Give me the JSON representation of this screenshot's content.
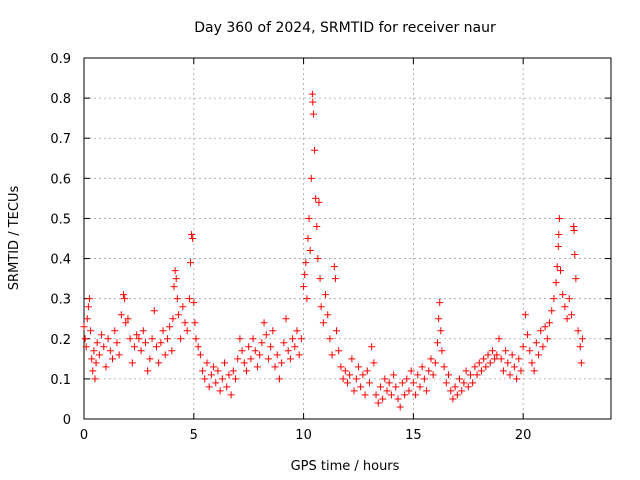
{
  "chart_data": {
    "type": "scatter",
    "title": "Day 360 of 2024, SRMTID for receiver naur",
    "xlabel": "GPS time / hours",
    "ylabel": "SRMTID / TECUs",
    "xlim": [
      0,
      24
    ],
    "ylim": [
      0,
      0.9
    ],
    "xticks": [
      0,
      5,
      10,
      15,
      20
    ],
    "yticks": [
      0,
      0.1,
      0.2,
      0.3,
      0.4,
      0.5,
      0.6,
      0.7,
      0.8,
      0.9
    ],
    "xtick_labels": [
      "0",
      "5",
      "10",
      "15",
      "20"
    ],
    "ytick_labels": [
      "0",
      "0.1",
      "0.2",
      "0.3",
      "0.4",
      "0.5",
      "0.6",
      "0.7",
      "0.8",
      "0.9"
    ],
    "grid": true,
    "marker": "+",
    "color": "#ff0000",
    "series": [
      {
        "name": "SRMTID",
        "points": [
          [
            0.0,
            0.23
          ],
          [
            0.05,
            0.2
          ],
          [
            0.1,
            0.18
          ],
          [
            0.15,
            0.25
          ],
          [
            0.2,
            0.28
          ],
          [
            0.25,
            0.3
          ],
          [
            0.3,
            0.22
          ],
          [
            0.35,
            0.15
          ],
          [
            0.4,
            0.12
          ],
          [
            0.45,
            0.17
          ],
          [
            0.5,
            0.1
          ],
          [
            0.55,
            0.14
          ],
          [
            0.6,
            0.19
          ],
          [
            0.7,
            0.16
          ],
          [
            0.8,
            0.21
          ],
          [
            0.9,
            0.18
          ],
          [
            1.0,
            0.13
          ],
          [
            1.1,
            0.2
          ],
          [
            1.2,
            0.17
          ],
          [
            1.3,
            0.15
          ],
          [
            1.4,
            0.22
          ],
          [
            1.5,
            0.19
          ],
          [
            1.6,
            0.16
          ],
          [
            1.7,
            0.26
          ],
          [
            1.8,
            0.31
          ],
          [
            1.85,
            0.3
          ],
          [
            1.9,
            0.24
          ],
          [
            2.0,
            0.25
          ],
          [
            2.1,
            0.2
          ],
          [
            2.2,
            0.14
          ],
          [
            2.3,
            0.18
          ],
          [
            2.4,
            0.21
          ],
          [
            2.5,
            0.2
          ],
          [
            2.6,
            0.17
          ],
          [
            2.7,
            0.22
          ],
          [
            2.8,
            0.19
          ],
          [
            2.9,
            0.12
          ],
          [
            3.0,
            0.15
          ],
          [
            3.1,
            0.2
          ],
          [
            3.2,
            0.27
          ],
          [
            3.3,
            0.18
          ],
          [
            3.4,
            0.14
          ],
          [
            3.5,
            0.19
          ],
          [
            3.6,
            0.22
          ],
          [
            3.7,
            0.16
          ],
          [
            3.8,
            0.2
          ],
          [
            3.9,
            0.23
          ],
          [
            4.0,
            0.17
          ],
          [
            4.05,
            0.25
          ],
          [
            4.1,
            0.33
          ],
          [
            4.15,
            0.37
          ],
          [
            4.2,
            0.35
          ],
          [
            4.25,
            0.3
          ],
          [
            4.3,
            0.26
          ],
          [
            4.4,
            0.2
          ],
          [
            4.5,
            0.28
          ],
          [
            4.6,
            0.24
          ],
          [
            4.7,
            0.22
          ],
          [
            4.8,
            0.3
          ],
          [
            4.85,
            0.39
          ],
          [
            4.9,
            0.46
          ],
          [
            4.95,
            0.45
          ],
          [
            5.0,
            0.29
          ],
          [
            5.05,
            0.24
          ],
          [
            5.1,
            0.2
          ],
          [
            5.2,
            0.18
          ],
          [
            5.3,
            0.16
          ],
          [
            5.4,
            0.12
          ],
          [
            5.5,
            0.1
          ],
          [
            5.6,
            0.14
          ],
          [
            5.7,
            0.08
          ],
          [
            5.8,
            0.11
          ],
          [
            5.9,
            0.13
          ],
          [
            6.0,
            0.09
          ],
          [
            6.1,
            0.12
          ],
          [
            6.2,
            0.07
          ],
          [
            6.3,
            0.1
          ],
          [
            6.4,
            0.14
          ],
          [
            6.5,
            0.08
          ],
          [
            6.6,
            0.11
          ],
          [
            6.7,
            0.06
          ],
          [
            6.8,
            0.12
          ],
          [
            6.9,
            0.1
          ],
          [
            7.0,
            0.15
          ],
          [
            7.1,
            0.2
          ],
          [
            7.2,
            0.17
          ],
          [
            7.3,
            0.14
          ],
          [
            7.4,
            0.12
          ],
          [
            7.5,
            0.18
          ],
          [
            7.6,
            0.15
          ],
          [
            7.7,
            0.2
          ],
          [
            7.8,
            0.17
          ],
          [
            7.9,
            0.13
          ],
          [
            8.0,
            0.16
          ],
          [
            8.1,
            0.19
          ],
          [
            8.2,
            0.24
          ],
          [
            8.3,
            0.21
          ],
          [
            8.4,
            0.15
          ],
          [
            8.5,
            0.18
          ],
          [
            8.6,
            0.22
          ],
          [
            8.7,
            0.13
          ],
          [
            8.8,
            0.16
          ],
          [
            8.9,
            0.1
          ],
          [
            9.0,
            0.14
          ],
          [
            9.1,
            0.19
          ],
          [
            9.2,
            0.25
          ],
          [
            9.3,
            0.17
          ],
          [
            9.4,
            0.15
          ],
          [
            9.5,
            0.2
          ],
          [
            9.6,
            0.18
          ],
          [
            9.7,
            0.22
          ],
          [
            9.8,
            0.16
          ],
          [
            9.9,
            0.2
          ],
          [
            10.0,
            0.33
          ],
          [
            10.05,
            0.36
          ],
          [
            10.1,
            0.39
          ],
          [
            10.15,
            0.3
          ],
          [
            10.2,
            0.45
          ],
          [
            10.25,
            0.5
          ],
          [
            10.3,
            0.42
          ],
          [
            10.35,
            0.6
          ],
          [
            10.4,
            0.81
          ],
          [
            10.42,
            0.79
          ],
          [
            10.45,
            0.76
          ],
          [
            10.5,
            0.67
          ],
          [
            10.55,
            0.55
          ],
          [
            10.6,
            0.48
          ],
          [
            10.65,
            0.4
          ],
          [
            10.7,
            0.54
          ],
          [
            10.75,
            0.35
          ],
          [
            10.8,
            0.28
          ],
          [
            10.9,
            0.24
          ],
          [
            11.0,
            0.31
          ],
          [
            11.1,
            0.26
          ],
          [
            11.2,
            0.2
          ],
          [
            11.3,
            0.16
          ],
          [
            11.4,
            0.38
          ],
          [
            11.45,
            0.35
          ],
          [
            11.5,
            0.22
          ],
          [
            11.6,
            0.17
          ],
          [
            11.7,
            0.13
          ],
          [
            11.8,
            0.1
          ],
          [
            11.9,
            0.12
          ],
          [
            12.0,
            0.09
          ],
          [
            12.1,
            0.11
          ],
          [
            12.2,
            0.15
          ],
          [
            12.3,
            0.07
          ],
          [
            12.4,
            0.1
          ],
          [
            12.5,
            0.13
          ],
          [
            12.6,
            0.08
          ],
          [
            12.7,
            0.11
          ],
          [
            12.8,
            0.06
          ],
          [
            12.9,
            0.12
          ],
          [
            13.0,
            0.09
          ],
          [
            13.1,
            0.18
          ],
          [
            13.2,
            0.14
          ],
          [
            13.3,
            0.06
          ],
          [
            13.4,
            0.04
          ],
          [
            13.5,
            0.08
          ],
          [
            13.6,
            0.05
          ],
          [
            13.7,
            0.1
          ],
          [
            13.8,
            0.07
          ],
          [
            13.9,
            0.09
          ],
          [
            14.0,
            0.06
          ],
          [
            14.1,
            0.11
          ],
          [
            14.2,
            0.08
          ],
          [
            14.3,
            0.05
          ],
          [
            14.4,
            0.03
          ],
          [
            14.5,
            0.09
          ],
          [
            14.6,
            0.06
          ],
          [
            14.7,
            0.1
          ],
          [
            14.8,
            0.07
          ],
          [
            14.9,
            0.12
          ],
          [
            15.0,
            0.09
          ],
          [
            15.1,
            0.06
          ],
          [
            15.2,
            0.11
          ],
          [
            15.3,
            0.08
          ],
          [
            15.4,
            0.13
          ],
          [
            15.5,
            0.1
          ],
          [
            15.6,
            0.07
          ],
          [
            15.7,
            0.12
          ],
          [
            15.8,
            0.15
          ],
          [
            15.9,
            0.11
          ],
          [
            16.0,
            0.14
          ],
          [
            16.1,
            0.19
          ],
          [
            16.15,
            0.25
          ],
          [
            16.2,
            0.29
          ],
          [
            16.25,
            0.22
          ],
          [
            16.3,
            0.17
          ],
          [
            16.4,
            0.13
          ],
          [
            16.5,
            0.09
          ],
          [
            16.6,
            0.11
          ],
          [
            16.7,
            0.07
          ],
          [
            16.8,
            0.05
          ],
          [
            16.9,
            0.08
          ],
          [
            17.0,
            0.06
          ],
          [
            17.1,
            0.1
          ],
          [
            17.2,
            0.07
          ],
          [
            17.3,
            0.09
          ],
          [
            17.4,
            0.12
          ],
          [
            17.5,
            0.08
          ],
          [
            17.6,
            0.11
          ],
          [
            17.7,
            0.09
          ],
          [
            17.8,
            0.13
          ],
          [
            17.9,
            0.11
          ],
          [
            18.0,
            0.14
          ],
          [
            18.1,
            0.12
          ],
          [
            18.2,
            0.15
          ],
          [
            18.3,
            0.13
          ],
          [
            18.4,
            0.16
          ],
          [
            18.5,
            0.14
          ],
          [
            18.6,
            0.17
          ],
          [
            18.7,
            0.15
          ],
          [
            18.8,
            0.16
          ],
          [
            18.9,
            0.2
          ],
          [
            19.0,
            0.15
          ],
          [
            19.1,
            0.12
          ],
          [
            19.2,
            0.17
          ],
          [
            19.3,
            0.14
          ],
          [
            19.4,
            0.11
          ],
          [
            19.5,
            0.16
          ],
          [
            19.6,
            0.13
          ],
          [
            19.7,
            0.1
          ],
          [
            19.8,
            0.15
          ],
          [
            19.9,
            0.12
          ],
          [
            20.0,
            0.18
          ],
          [
            20.1,
            0.26
          ],
          [
            20.2,
            0.21
          ],
          [
            20.3,
            0.17
          ],
          [
            20.4,
            0.14
          ],
          [
            20.5,
            0.12
          ],
          [
            20.6,
            0.19
          ],
          [
            20.7,
            0.16
          ],
          [
            20.8,
            0.22
          ],
          [
            20.9,
            0.18
          ],
          [
            21.0,
            0.23
          ],
          [
            21.1,
            0.2
          ],
          [
            21.2,
            0.24
          ],
          [
            21.3,
            0.27
          ],
          [
            21.4,
            0.3
          ],
          [
            21.5,
            0.34
          ],
          [
            21.55,
            0.38
          ],
          [
            21.6,
            0.43
          ],
          [
            21.62,
            0.46
          ],
          [
            21.65,
            0.5
          ],
          [
            21.7,
            0.37
          ],
          [
            21.8,
            0.31
          ],
          [
            21.9,
            0.28
          ],
          [
            22.0,
            0.25
          ],
          [
            22.1,
            0.3
          ],
          [
            22.2,
            0.26
          ],
          [
            22.3,
            0.48
          ],
          [
            22.32,
            0.47
          ],
          [
            22.35,
            0.41
          ],
          [
            22.4,
            0.35
          ],
          [
            22.5,
            0.22
          ],
          [
            22.6,
            0.18
          ],
          [
            22.65,
            0.14
          ],
          [
            22.7,
            0.2
          ]
        ]
      }
    ]
  }
}
